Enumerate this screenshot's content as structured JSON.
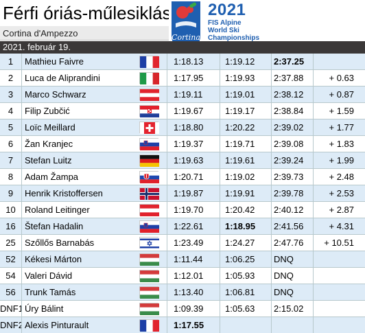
{
  "header": {
    "title": "Férfi óriás-műlesiklás",
    "subtitle": "Cortina d'Ampezzo",
    "date": "2021. február 19."
  },
  "logo": {
    "year": "2021",
    "line1": "FIS Alpine",
    "line2": "World Ski",
    "line3": "Championships",
    "script": "Cortina",
    "color": "#1f5fb0"
  },
  "colors": {
    "row_alt": "#ddebf7",
    "date_band": "#3b3838",
    "grid": "#b7c8cc"
  },
  "rows": [
    {
      "rank": "1",
      "name": "Mathieu Faivre",
      "flag": "france",
      "run1": "1:18.13",
      "run2": "1:19.12",
      "total": "2:37.25",
      "diff": "",
      "bold": "total"
    },
    {
      "rank": "2",
      "name": "Luca de Aliprandini",
      "flag": "italy",
      "run1": "1:17.95",
      "run2": "1:19.93",
      "total": "2:37.88",
      "diff": "+ 0.63",
      "bold": ""
    },
    {
      "rank": "3",
      "name": "Marco Schwarz",
      "flag": "austria",
      "run1": "1:19.11",
      "run2": "1:19.01",
      "total": "2:38.12",
      "diff": "+ 0.87",
      "bold": ""
    },
    {
      "rank": "4",
      "name": "Filip Zubčić",
      "flag": "croatia",
      "run1": "1:19.67",
      "run2": "1:19.17",
      "total": "2:38.84",
      "diff": "+ 1.59",
      "bold": ""
    },
    {
      "rank": "5",
      "name": "Loïc Meillard",
      "flag": "switzerland",
      "run1": "1:18.80",
      "run2": "1:20.22",
      "total": "2:39.02",
      "diff": "+ 1.77",
      "bold": ""
    },
    {
      "rank": "6",
      "name": "Žan Kranjec",
      "flag": "slovenia",
      "run1": "1:19.37",
      "run2": "1:19.71",
      "total": "2:39.08",
      "diff": "+ 1.83",
      "bold": ""
    },
    {
      "rank": "7",
      "name": "Stefan Luitz",
      "flag": "germany",
      "run1": "1:19.63",
      "run2": "1:19.61",
      "total": "2:39.24",
      "diff": "+ 1.99",
      "bold": ""
    },
    {
      "rank": "8",
      "name": "Adam Žampa",
      "flag": "slovakia",
      "run1": "1:20.71",
      "run2": "1:19.02",
      "total": "2:39.73",
      "diff": "+ 2.48",
      "bold": ""
    },
    {
      "rank": "9",
      "name": "Henrik Kristoffersen",
      "flag": "norway",
      "run1": "1:19.87",
      "run2": "1:19.91",
      "total": "2:39.78",
      "diff": "+ 2.53",
      "bold": ""
    },
    {
      "rank": "10",
      "name": "Roland Leitinger",
      "flag": "austria",
      "run1": "1:19.70",
      "run2": "1:20.42",
      "total": "2:40.12",
      "diff": "+ 2.87",
      "bold": ""
    },
    {
      "rank": "16",
      "name": "Štefan Hadalin",
      "flag": "slovenia",
      "run1": "1:22.61",
      "run2": "1:18.95",
      "total": "2:41.56",
      "diff": "+ 4.31",
      "bold": "run2"
    },
    {
      "rank": "25",
      "name": "Szőllős Barnabás",
      "flag": "israel",
      "run1": "1:23.49",
      "run2": "1:24.27",
      "total": "2:47.76",
      "diff": "+ 10.51",
      "bold": ""
    },
    {
      "rank": "52",
      "name": "Kékesi Márton",
      "flag": "hungary",
      "run1": "1:11.44",
      "run2": "1:06.25",
      "total": "DNQ",
      "diff": "",
      "bold": ""
    },
    {
      "rank": "54",
      "name": "Valeri Dávid",
      "flag": "hungary",
      "run1": "1:12.01",
      "run2": "1:05.93",
      "total": "DNQ",
      "diff": "",
      "bold": ""
    },
    {
      "rank": "56",
      "name": "Trunk Tamás",
      "flag": "hungary",
      "run1": "1:13.40",
      "run2": "1:06.81",
      "total": "DNQ",
      "diff": "",
      "bold": ""
    },
    {
      "rank": "DNF1",
      "name": "Úry Bálint",
      "flag": "hungary",
      "run1": "1:09.39",
      "run2": "1:05.63",
      "total": "2:15.02",
      "diff": "",
      "bold": ""
    },
    {
      "rank": "DNF2",
      "name": "Alexis Pinturault",
      "flag": "france",
      "run1": "1:17.55",
      "run2": "",
      "total": "",
      "diff": "",
      "bold": "run1"
    }
  ]
}
